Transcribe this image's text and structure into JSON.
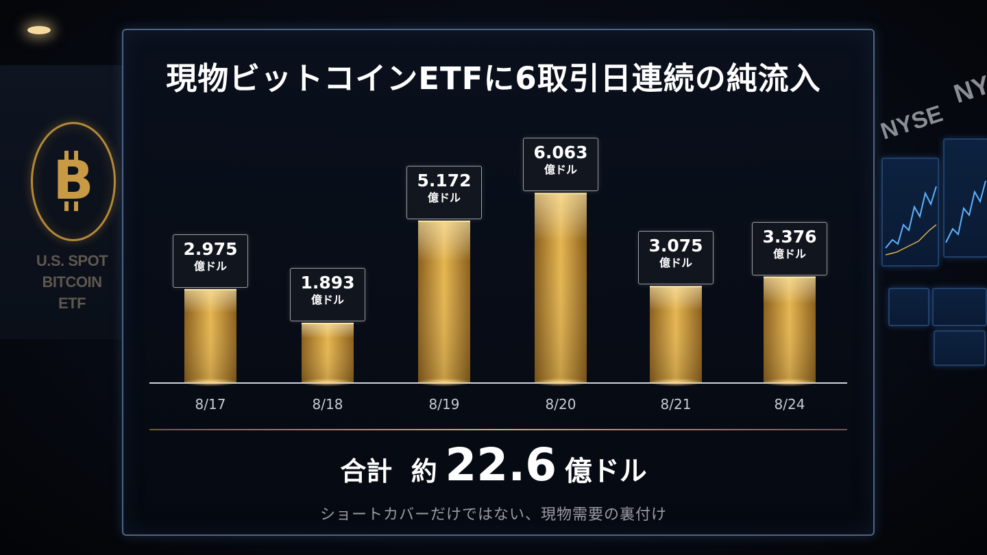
{
  "title": "現物ビットコインETFに6取引日連続の純流入",
  "background": {
    "left_sign": [
      "U.S. SPOT",
      "BITCOIN",
      "ETF"
    ],
    "right_sign": [
      "NYSE",
      "NY"
    ]
  },
  "colors": {
    "bar_gold": "#d9a53a",
    "bar_highlight": "#f5d57c",
    "panel_border": "#4e6584",
    "divider_gold": "#d8b064"
  },
  "chart_data": {
    "type": "bar",
    "categories": [
      "8/17",
      "8/18",
      "8/19",
      "8/20",
      "8/21",
      "8/24"
    ],
    "values": [
      2.975,
      1.893,
      5.172,
      6.063,
      3.075,
      3.376
    ],
    "value_labels": [
      "2.975",
      "1.893",
      "5.172",
      "6.063",
      "3.075",
      "3.376"
    ],
    "unit_label": "億ドル",
    "title": "現物ビットコインETFに6取引日連続の純流入",
    "xlabel": "",
    "ylabel": "",
    "ylim": [
      0,
      6.6
    ],
    "grid": false,
    "legend": "none"
  },
  "summary": {
    "label_total": "合計",
    "label_approx": "約",
    "amount": "22.6",
    "unit": "億ドル",
    "subtitle": "ショートカバーだけではない、現物需要の裏付け"
  }
}
